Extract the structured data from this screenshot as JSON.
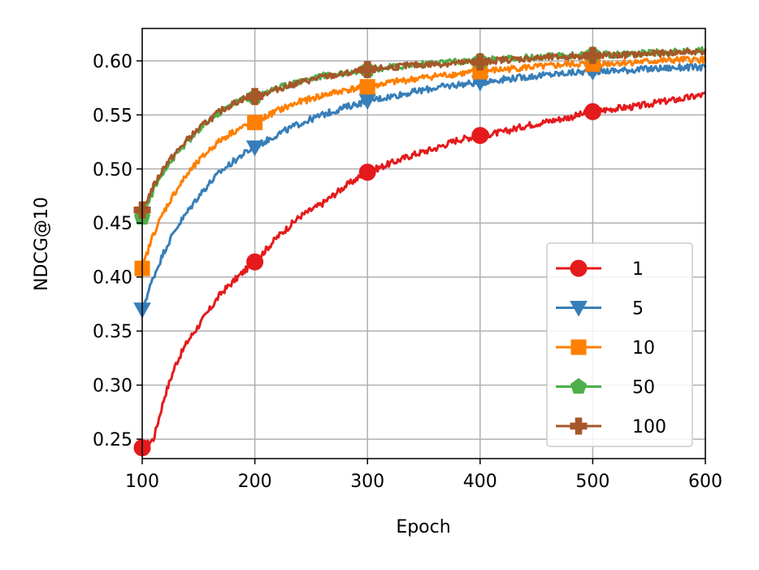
{
  "chart_data": {
    "type": "line",
    "title": "",
    "xlabel": "Epoch",
    "ylabel": "NDCG@10",
    "xlim": [
      100,
      600
    ],
    "ylim": [
      0.232,
      0.63
    ],
    "xticks": [
      100,
      200,
      300,
      400,
      500,
      600
    ],
    "yticks": [
      0.25,
      0.3,
      0.35,
      0.4,
      0.45,
      0.5,
      0.55,
      0.6
    ],
    "xtick_labels": [
      "100",
      "200",
      "300",
      "400",
      "500",
      "600"
    ],
    "ytick_labels": [
      "0.25",
      "0.30",
      "0.35",
      "0.40",
      "0.45",
      "0.50",
      "0.55",
      "0.60"
    ],
    "grid": true,
    "legend_position": "lower-right",
    "x": [
      100,
      110,
      120,
      130,
      140,
      150,
      160,
      170,
      180,
      190,
      200,
      220,
      240,
      260,
      280,
      300,
      320,
      340,
      360,
      380,
      400,
      420,
      440,
      460,
      480,
      500,
      520,
      540,
      560,
      580,
      600
    ],
    "marker_x": [
      100,
      200,
      300,
      400,
      500
    ],
    "series": [
      {
        "name": "1",
        "color": "#e41a1c",
        "marker": "circle",
        "values": [
          0.242,
          0.25,
          0.29,
          0.32,
          0.34,
          0.355,
          0.37,
          0.385,
          0.395,
          0.405,
          0.414,
          0.437,
          0.456,
          0.468,
          0.484,
          0.497,
          0.505,
          0.513,
          0.519,
          0.527,
          0.531,
          0.534,
          0.54,
          0.544,
          0.548,
          0.553,
          0.556,
          0.558,
          0.562,
          0.565,
          0.569
        ]
      },
      {
        "name": "5",
        "color": "#377eb8",
        "marker": "triangle-down",
        "values": [
          0.37,
          0.4,
          0.425,
          0.445,
          0.46,
          0.475,
          0.487,
          0.498,
          0.506,
          0.514,
          0.52,
          0.532,
          0.542,
          0.55,
          0.557,
          0.563,
          0.567,
          0.571,
          0.575,
          0.578,
          0.58,
          0.583,
          0.585,
          0.587,
          0.589,
          0.59,
          0.591,
          0.592,
          0.593,
          0.594,
          0.594
        ]
      },
      {
        "name": "10",
        "color": "#ff7f00",
        "marker": "square",
        "values": [
          0.408,
          0.44,
          0.462,
          0.48,
          0.495,
          0.507,
          0.518,
          0.527,
          0.534,
          0.539,
          0.543,
          0.554,
          0.562,
          0.568,
          0.573,
          0.576,
          0.58,
          0.583,
          0.586,
          0.588,
          0.59,
          0.592,
          0.594,
          0.595,
          0.597,
          0.597,
          0.598,
          0.599,
          0.6,
          0.601,
          0.601
        ]
      },
      {
        "name": "50",
        "color": "#4daf4a",
        "marker": "pentagon",
        "values": [
          0.455,
          0.48,
          0.5,
          0.513,
          0.525,
          0.535,
          0.545,
          0.553,
          0.56,
          0.565,
          0.567,
          0.575,
          0.581,
          0.586,
          0.589,
          0.592,
          0.594,
          0.596,
          0.598,
          0.599,
          0.6,
          0.602,
          0.603,
          0.604,
          0.605,
          0.606,
          0.606,
          0.607,
          0.608,
          0.609,
          0.61
        ]
      },
      {
        "name": "100",
        "color": "#a65628",
        "marker": "plus-filled",
        "values": [
          0.462,
          0.484,
          0.503,
          0.515,
          0.527,
          0.537,
          0.546,
          0.554,
          0.56,
          0.565,
          0.567,
          0.574,
          0.58,
          0.585,
          0.588,
          0.592,
          0.594,
          0.596,
          0.597,
          0.598,
          0.599,
          0.601,
          0.602,
          0.603,
          0.604,
          0.605,
          0.605,
          0.606,
          0.607,
          0.608,
          0.609
        ]
      }
    ]
  }
}
